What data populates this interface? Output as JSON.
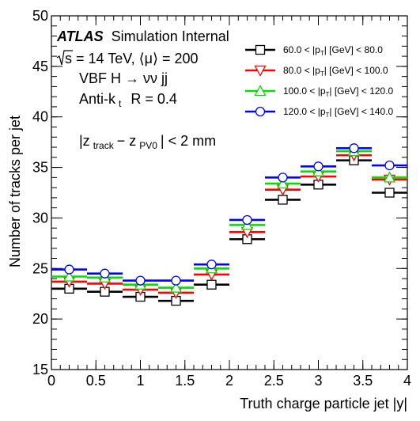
{
  "chart_data": {
    "type": "step",
    "xlabel": "Truth charge particle jet |y|",
    "ylabel": "Number of tracks per jet",
    "xlim": [
      0,
      4
    ],
    "ylim": [
      15,
      50
    ],
    "x_ticks": [
      "0",
      "0.5",
      "1",
      "1.5",
      "2",
      "2.5",
      "3",
      "3.5",
      "4"
    ],
    "y_ticks": [
      "15",
      "20",
      "25",
      "30",
      "35",
      "40",
      "45",
      "50"
    ],
    "x_tick_values": [
      0,
      0.5,
      1,
      1.5,
      2,
      2.5,
      3,
      3.5,
      4
    ],
    "y_tick_values": [
      15,
      20,
      25,
      30,
      35,
      40,
      45,
      50
    ],
    "bin_edges": [
      0,
      0.4,
      0.8,
      1.2,
      1.6,
      2.0,
      2.4,
      2.8,
      3.2,
      3.6,
      4.0
    ],
    "series": [
      {
        "name": "60.0 < |p_T| [GeV] < 80.0",
        "color": "#000000",
        "marker": "square",
        "values": [
          23.0,
          22.7,
          22.2,
          21.8,
          23.4,
          27.9,
          31.8,
          33.3,
          35.7,
          32.5
        ]
      },
      {
        "name": "80.0 < |p_T| [GeV] < 100.0",
        "color": "#ff0000",
        "marker": "triangle-down",
        "values": [
          23.7,
          23.5,
          22.9,
          22.6,
          24.4,
          28.6,
          32.8,
          34.1,
          36.2,
          33.8
        ]
      },
      {
        "name": "100.0 < |p_T| [GeV] < 120.0",
        "color": "#00dd00",
        "marker": "triangle-up",
        "values": [
          24.2,
          24.1,
          23.4,
          23.1,
          25.0,
          29.3,
          33.4,
          34.6,
          36.6,
          34.0
        ]
      },
      {
        "name": "120.0 < |p_T| [GeV] < 140.0",
        "color": "#0000ff",
        "marker": "circle",
        "values": [
          24.9,
          24.5,
          23.8,
          23.8,
          25.4,
          29.8,
          34.0,
          35.1,
          36.9,
          35.2
        ]
      }
    ],
    "legend": {
      "placement": "top-right",
      "entries": [
        {
          "prefix": "60.0 < |p",
          "sub": "T",
          "suffix": "| [GeV] < 80.0"
        },
        {
          "prefix": "80.0 < |p",
          "sub": "T",
          "suffix": "| [GeV] < 100.0"
        },
        {
          "prefix": "100.0 < |p",
          "sub": "T",
          "suffix": "| [GeV] < 120.0"
        },
        {
          "prefix": "120.0 < |p",
          "sub": "T",
          "suffix": "| [GeV] < 140.0"
        }
      ]
    },
    "annotations": {
      "atlas": "ATLAS",
      "atlas_sub": "Simulation Internal",
      "energy": "s = 14 TeV, ⟨μ⟩ = 200",
      "process": "VBF H → νν jj",
      "algo": "Anti-k",
      "algo_sub": "t",
      "radius": "R = 0.4",
      "cut_prefix": "|z",
      "cut_sub1": "track",
      "cut_mid": " − z",
      "cut_sub2": "PV0",
      "cut_suffix": "| < 2 mm"
    },
    "grid": false
  }
}
